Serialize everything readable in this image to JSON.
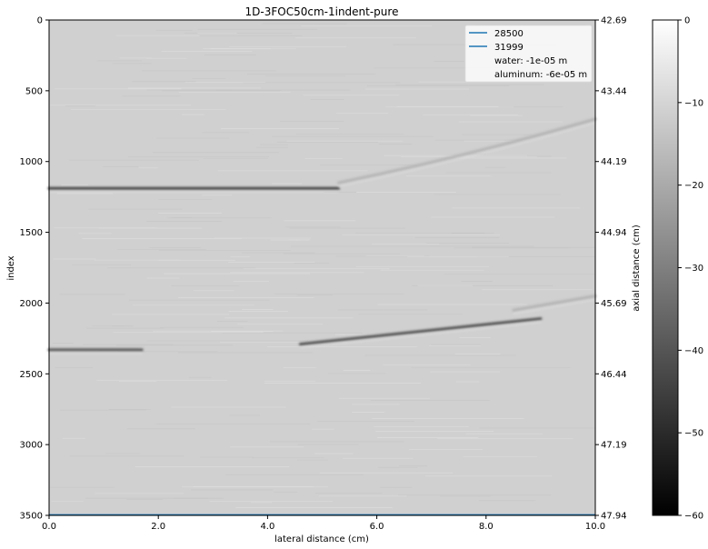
{
  "chart_data": {
    "type": "heatmap",
    "title": "1D-3FOC50cm-1indent-pure",
    "xlabel": "lateral distance (cm)",
    "ylabel": "index",
    "ylabel_right": "axial distance (cm)",
    "xlim": [
      0.0,
      10.0
    ],
    "ylim": [
      3500,
      0
    ],
    "ylim_right": [
      47.94,
      42.69
    ],
    "x_ticks": [
      "0.0",
      "2.0",
      "4.0",
      "6.0",
      "8.0",
      "10.0"
    ],
    "y_ticks": [
      "0",
      "500",
      "1000",
      "1500",
      "2000",
      "2500",
      "3000",
      "3500"
    ],
    "y_ticks_right": [
      "42.69",
      "43.44",
      "44.19",
      "44.94",
      "45.69",
      "46.44",
      "47.19",
      "47.94"
    ],
    "colormap": "gray",
    "colorbar": {
      "range": [
        -60,
        0
      ],
      "ticks": [
        "0",
        "−10",
        "−20",
        "−30",
        "−40",
        "−50",
        "−60"
      ]
    },
    "series": [
      {
        "name": "28500",
        "color": "#1f77b4",
        "style": "line",
        "y": 3500
      },
      {
        "name": "31999",
        "color": "#1f77b4",
        "style": "line",
        "y": 3500
      }
    ],
    "legend": {
      "placement": "top-right",
      "extra_entries": [
        "water: -1e-05 m",
        "aluminum: -6e-05 m"
      ]
    },
    "features": [
      {
        "label": "upper reflector",
        "x_range": [
          0.0,
          5.3
        ],
        "index": 1190,
        "strength_db": -45
      },
      {
        "label": "upper weak arc",
        "x_range": [
          5.3,
          10.0
        ],
        "index": [
          1150,
          700
        ],
        "strength_db": -18
      },
      {
        "label": "lower left echo",
        "x_range": [
          0.0,
          1.7
        ],
        "index": 2330,
        "strength_db": -40
      },
      {
        "label": "lower reflector",
        "x_range": [
          4.6,
          9.0
        ],
        "index": [
          2290,
          2110
        ],
        "strength_db": -42
      },
      {
        "label": "lower weak arc",
        "x_range": [
          8.5,
          10.0
        ],
        "index": [
          2050,
          1950
        ],
        "strength_db": -18
      }
    ]
  }
}
